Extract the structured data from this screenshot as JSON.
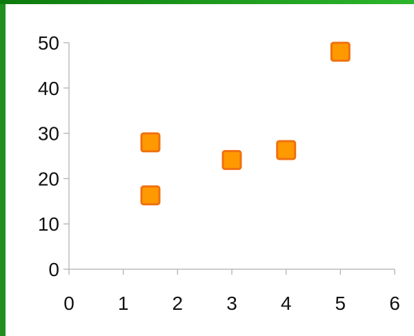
{
  "chart_data": {
    "type": "scatter",
    "title": "",
    "xlabel": "",
    "ylabel": "",
    "xlim": [
      0,
      6
    ],
    "ylim": [
      0,
      50
    ],
    "x_ticks": [
      "0",
      "1",
      "2",
      "3",
      "4",
      "5",
      "6"
    ],
    "y_ticks": [
      "0",
      "10",
      "20",
      "30",
      "40",
      "50"
    ],
    "grid": false,
    "legend": "none",
    "marker": "square",
    "marker_fill": "#ff9900",
    "marker_stroke": "#f07010",
    "axis_color": "#bbbbbb",
    "series": [
      {
        "points": [
          {
            "x": 1.5,
            "y": 16.3
          },
          {
            "x": 1.5,
            "y": 28.0
          },
          {
            "x": 3.0,
            "y": 24.1
          },
          {
            "x": 4.0,
            "y": 26.3
          },
          {
            "x": 5.0,
            "y": 48.0
          }
        ]
      }
    ]
  }
}
